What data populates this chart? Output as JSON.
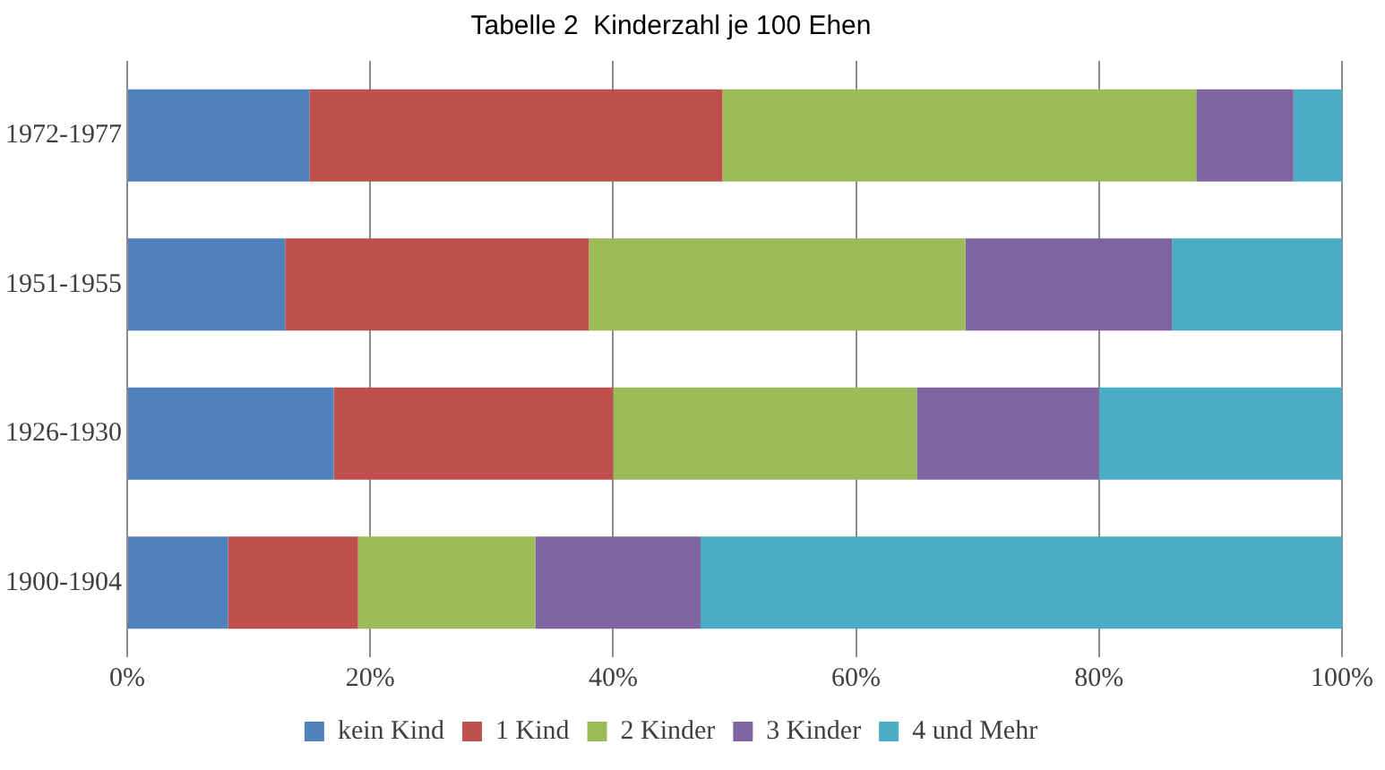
{
  "chart_data": {
    "type": "bar",
    "title": "Tabelle 2  Kinderzahl je 100 Ehen",
    "orientation": "horizontal",
    "stacked": true,
    "categories": [
      "1972-1977",
      "1951-1955",
      "1926-1930",
      "1900-1904"
    ],
    "series": [
      {
        "name": "kein Kind",
        "color": "#4f81bd",
        "values": [
          15,
          13,
          17,
          8.3
        ]
      },
      {
        "name": "1 Kind",
        "color": "#c0504d",
        "values": [
          34,
          25,
          23,
          10.7
        ]
      },
      {
        "name": "2 Kinder",
        "color": "#9bbb59",
        "values": [
          39,
          31,
          25,
          14.6
        ]
      },
      {
        "name": "3 Kinder",
        "color": "#8064a2",
        "values": [
          8,
          17,
          15,
          13.6
        ]
      },
      {
        "name": "4 und Mehr",
        "color": "#4bacc6",
        "values": [
          4,
          14,
          20,
          52.8
        ]
      }
    ],
    "xlim": [
      0,
      100
    ],
    "xticks": [
      {
        "value": 0,
        "label": "0%"
      },
      {
        "value": 20,
        "label": "20%"
      },
      {
        "value": 40,
        "label": "40%"
      },
      {
        "value": 60,
        "label": "60%"
      },
      {
        "value": 80,
        "label": "80%"
      },
      {
        "value": 100,
        "label": "100%"
      }
    ],
    "grid": "x",
    "legend": "bottom"
  }
}
